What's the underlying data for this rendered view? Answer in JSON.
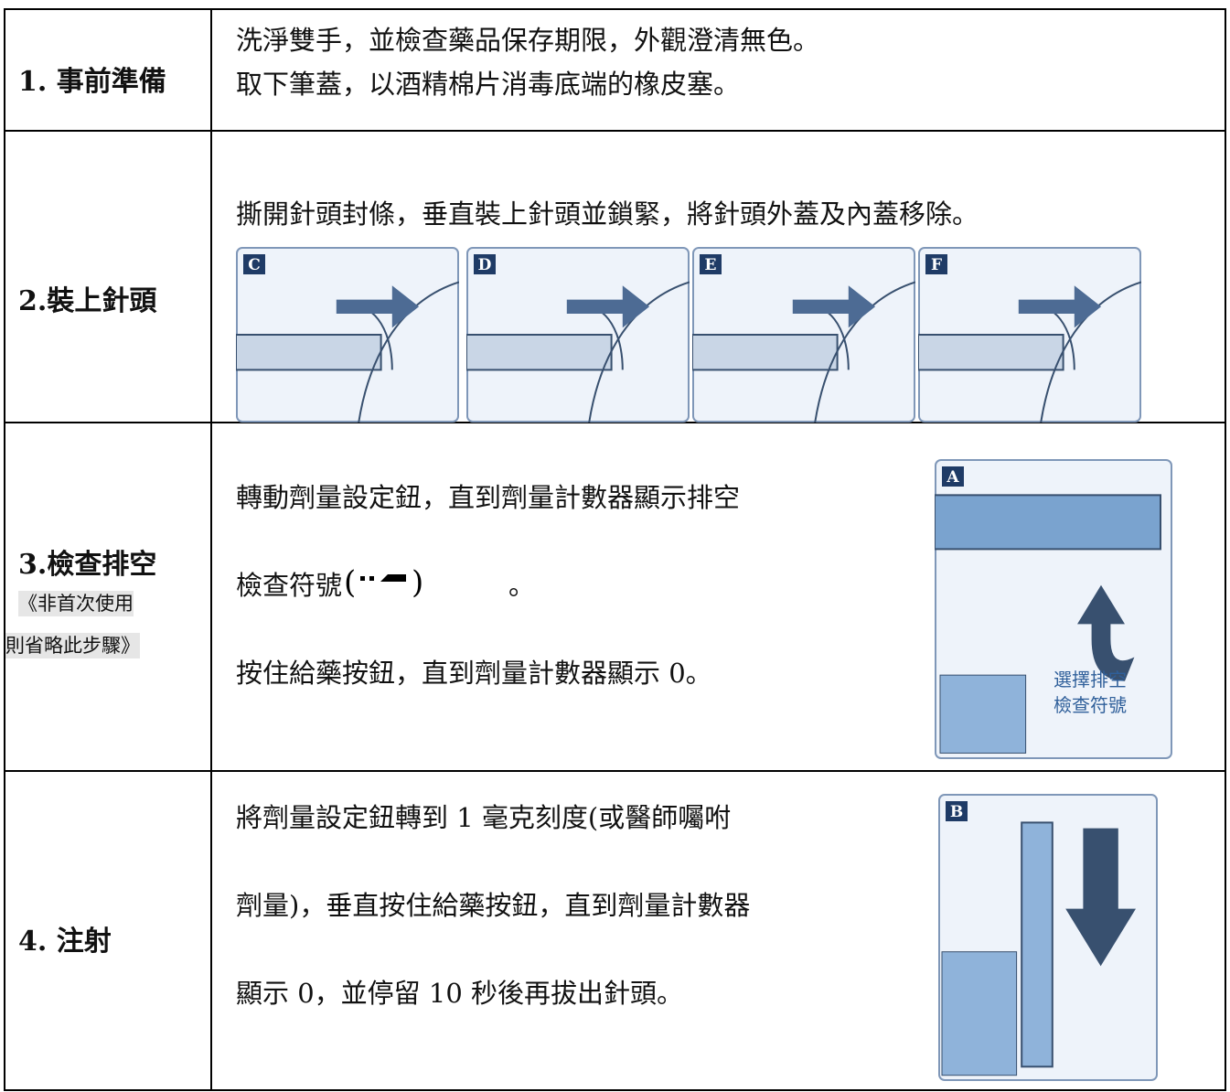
{
  "rows": [
    {
      "step": "1. 事前準備",
      "lines": [
        "洗淨雙手，並檢查藥品保存期限，外觀澄清無色。",
        "取下筆蓋，以酒精棉片消毒底端的橡皮塞。"
      ]
    },
    {
      "step": "2.裝上針頭",
      "lines": [
        "撕開針頭封條，垂直裝上針頭並鎖緊，將針頭外蓋及內蓋移除。"
      ],
      "panels": [
        "C",
        "D",
        "E",
        "F"
      ]
    },
    {
      "step": "3.檢查排空",
      "note": [
        "《非首次使用",
        "則省略此步驟》"
      ],
      "lines": [
        "轉動劑量設定鈕，直到劑量計數器顯示排空",
        "檢查符號",
        "。",
        "按住給藥按鈕，直到劑量計數器顯示 0。"
      ],
      "panel": "A",
      "caption": [
        "選擇排空",
        "檢查符號"
      ]
    },
    {
      "step": "4. 注射",
      "lines": [
        "將劑量設定鈕轉到 1 毫克刻度(或醫師囑咐",
        "劑量)，垂直按住給藥按鈕，直到劑量計數器",
        "顯示 0，並停留 10 秒後再拔出針頭。"
      ],
      "panel": "B"
    }
  ]
}
